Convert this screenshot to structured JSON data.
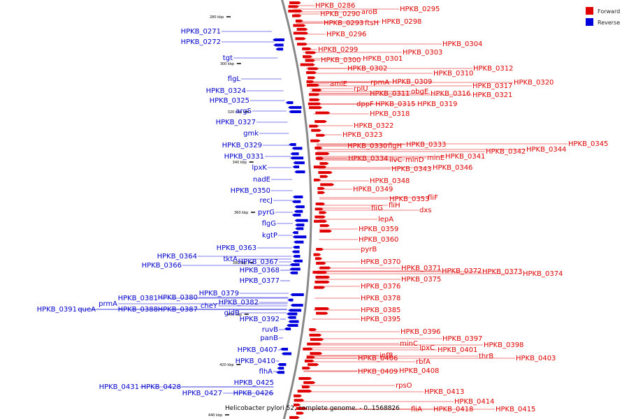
{
  "legend": {
    "items": [
      {
        "label": "Forward",
        "color": "#e00000"
      },
      {
        "label": "Reverse",
        "color": "#0000dd"
      }
    ]
  },
  "caption": "Helicobacter pylori 52, complete genome. - 0..1568826",
  "colors": {
    "forward": "#e00000",
    "reverse": "#0000dd",
    "backbone": "#888888"
  },
  "scale_ticks": [
    "280 kbp",
    "300 kbp",
    "320 kbp",
    "340 kbp",
    "360 kbp",
    "380 kbp",
    "400 kbp",
    "420 kbp",
    "440 kbp"
  ],
  "forward_genes": [
    "HPKB_0286",
    "HPKB_0290",
    "aroB",
    "HPKB_0295",
    "HPKB_0293",
    "ftsH",
    "HPKB_0298",
    "HPKB_0296",
    "HPKB_0304",
    "HPKB_0303",
    "HPKB_0299",
    "HPKB_0300",
    "HPKB_0301",
    "HPKB_0302",
    "HPKB_0312",
    "HPKB_0310",
    "amiE",
    "rplU",
    "rpmA",
    "HPKB_0309",
    "HPKB_0320",
    "HPKB_0317",
    "HPKB_0311",
    "obgE",
    "HPKB_0316",
    "HPKB_0321",
    "dppF",
    "HPKB_0315",
    "HPKB_0319",
    "HPKB_0318",
    "HPKB_0322",
    "HPKB_0323",
    "HPKB_0345",
    "HPKB_0330",
    "flgH",
    "HPKB_0333",
    "HPKB_0344",
    "HPKB_0342",
    "HPKB_0334",
    "ilvC",
    "minD",
    "minE",
    "HPKB_0341",
    "HPKB_0343",
    "HPKB_0346",
    "HPKB_0348",
    "HPKB_0349",
    "HPKB_0353",
    "fliF",
    "fliG",
    "fliH",
    "dxs",
    "lepA",
    "HPKB_0359",
    "HPKB_0360",
    "pyrB",
    "HPKB_0370",
    "HPKB_0371",
    "HPKB_0372",
    "HPKB_0373",
    "HPKB_0374",
    "HPKB_0375",
    "HPKB_0376",
    "HPKB_0378",
    "HPKB_0385",
    "HPKB_0395",
    "HPKB_0396",
    "HPKB_0397",
    "minC",
    "HPKB_0398",
    "lpxC",
    "HPKB_0401",
    "infB",
    "thrB",
    "HPKB_0406",
    "HPKB_0403",
    "rbfA",
    "HPKB_0409",
    "HPKB_0408",
    "rpsO",
    "HPKB_0413",
    "HPKB_0414",
    "fliA",
    "HPKB_0418",
    "HPKB_0415"
  ],
  "reverse_genes": [
    "HPKB_0271",
    "HPKB_0272",
    "tgt",
    "flgL",
    "HPKB_0324",
    "HPKB_0325",
    "argS",
    "HPKB_0327",
    "gmk",
    "HPKB_0329",
    "HPKB_0331",
    "lpxK",
    "nadE",
    "HPKB_0350",
    "recJ",
    "pyrG",
    "flgG",
    "kgtP",
    "HPKB_0363",
    "HPKB_0364",
    "tktA",
    "HPKB_0367",
    "HPKB_0366",
    "HPKB_0368",
    "HPKB_0377",
    "HPKB_0379",
    "HPKB_0381",
    "HPKB_0380",
    "prmA",
    "HPKB_0382",
    "cheY",
    "HPKB_0391",
    "queA",
    "HPKB_0388",
    "HPKB_0387",
    "gidB",
    "HPKB_0392",
    "ruvB",
    "panB",
    "HPKB_0407",
    "HPKB_0410",
    "flhA",
    "HPKB_0425",
    "HPKB_0431",
    "HPKB_0428",
    "HPKB_0427",
    "HPKB_0426"
  ]
}
